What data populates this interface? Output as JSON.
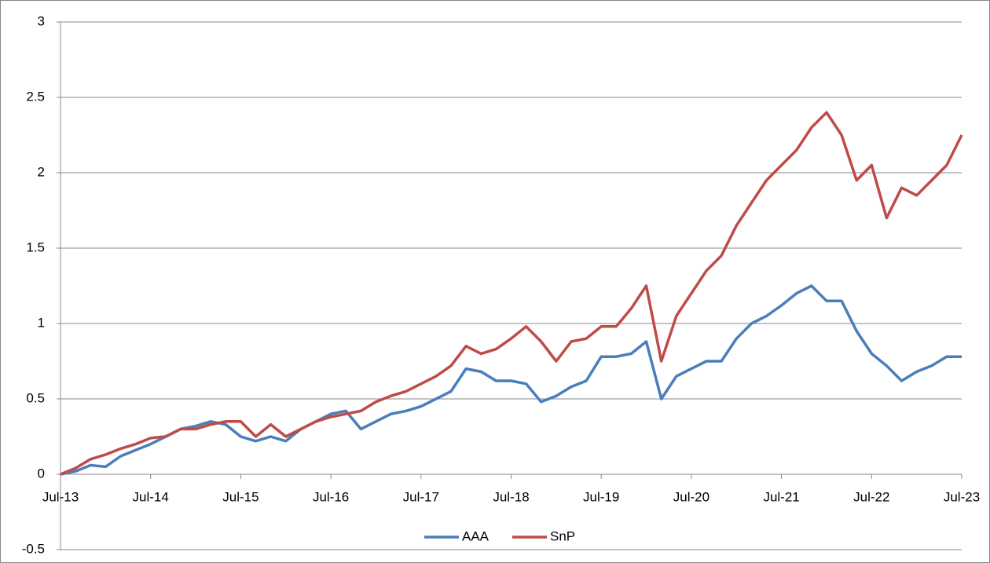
{
  "chart_data": {
    "type": "line",
    "x": [
      "Jul-13",
      null,
      null,
      null,
      null,
      null,
      "Jul-14",
      null,
      null,
      null,
      null,
      null,
      "Jul-15",
      null,
      null,
      null,
      null,
      null,
      "Jul-16",
      null,
      null,
      null,
      null,
      null,
      "Jul-17",
      null,
      null,
      null,
      null,
      null,
      "Jul-18",
      null,
      null,
      null,
      null,
      null,
      "Jul-19",
      null,
      null,
      null,
      null,
      null,
      "Jul-20",
      null,
      null,
      null,
      null,
      null,
      "Jul-21",
      null,
      null,
      null,
      null,
      null,
      "Jul-22",
      null,
      null,
      null,
      null,
      null,
      "Jul-23"
    ],
    "series": [
      {
        "name": "AAA",
        "color": "#4a7ebb",
        "values": [
          0.0,
          0.02,
          0.06,
          0.05,
          0.12,
          0.16,
          0.2,
          0.25,
          0.3,
          0.32,
          0.35,
          0.33,
          0.25,
          0.22,
          0.25,
          0.22,
          0.3,
          0.35,
          0.4,
          0.42,
          0.3,
          0.35,
          0.4,
          0.42,
          0.45,
          0.5,
          0.55,
          0.7,
          0.68,
          0.62,
          0.62,
          0.6,
          0.48,
          0.52,
          0.58,
          0.62,
          0.78,
          0.78,
          0.8,
          0.88,
          0.5,
          0.65,
          0.7,
          0.75,
          0.75,
          0.9,
          1.0,
          1.05,
          1.12,
          1.2,
          1.25,
          1.15,
          1.15,
          0.95,
          0.8,
          0.72,
          0.62,
          0.68,
          0.72,
          0.78,
          0.78
        ]
      },
      {
        "name": "SnP",
        "color": "#be4b48",
        "values": [
          0.0,
          0.04,
          0.1,
          0.13,
          0.17,
          0.2,
          0.24,
          0.25,
          0.3,
          0.3,
          0.33,
          0.35,
          0.35,
          0.25,
          0.33,
          0.25,
          0.3,
          0.35,
          0.38,
          0.4,
          0.42,
          0.48,
          0.52,
          0.55,
          0.6,
          0.65,
          0.72,
          0.85,
          0.8,
          0.83,
          0.9,
          0.98,
          0.88,
          0.75,
          0.88,
          0.9,
          0.98,
          0.98,
          1.1,
          1.25,
          0.75,
          1.05,
          1.2,
          1.35,
          1.45,
          1.65,
          1.8,
          1.95,
          2.05,
          2.15,
          2.3,
          2.4,
          2.25,
          1.95,
          2.05,
          1.7,
          1.9,
          1.85,
          1.95,
          2.05,
          2.25
        ]
      }
    ],
    "ylim": [
      -0.5,
      3
    ],
    "yticks": [
      -0.5,
      0,
      0.5,
      1,
      1.5,
      2,
      2.5,
      3
    ],
    "grid": true,
    "legend": "bottom"
  }
}
